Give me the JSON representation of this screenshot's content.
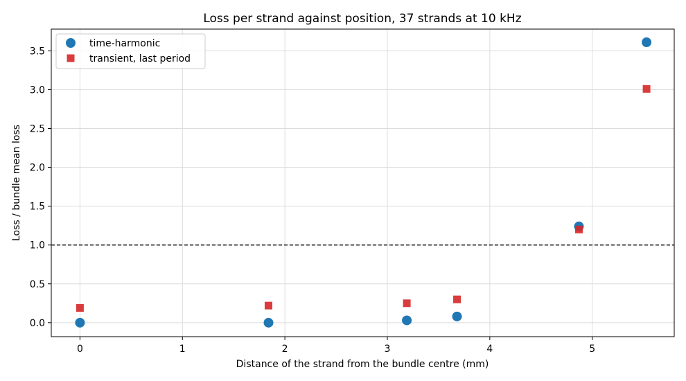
{
  "chart_data": {
    "type": "scatter",
    "title": "Loss per strand against position, 37 strands at 10 kHz",
    "xlabel": "Distance of the strand from the bundle centre (mm)",
    "ylabel": "Loss / bundle mean loss",
    "xlim": [
      -0.28,
      5.8
    ],
    "ylim": [
      -0.18,
      3.78
    ],
    "xticks": [
      0,
      1,
      2,
      3,
      4,
      5
    ],
    "yticks": [
      0.0,
      0.5,
      1.0,
      1.5,
      2.0,
      2.5,
      3.0,
      3.5
    ],
    "xtick_labels": [
      "0",
      "1",
      "2",
      "3",
      "4",
      "5"
    ],
    "ytick_labels": [
      "0.0",
      "0.5",
      "1.0",
      "1.5",
      "2.0",
      "2.5",
      "3.0",
      "3.5"
    ],
    "grid": true,
    "legend_position": "top-left",
    "reference_line": {
      "y": 1.0,
      "style": "dashed",
      "color": "#000000"
    },
    "series": [
      {
        "name": "time-harmonic",
        "marker": "circle",
        "color": "#1f77b4",
        "x": [
          0,
          1.84,
          3.19,
          3.68,
          4.87,
          5.53
        ],
        "y": [
          0.0,
          0.0,
          0.03,
          0.08,
          1.24,
          3.61
        ]
      },
      {
        "name": "transient, last period",
        "marker": "square",
        "color": "#d62728",
        "x": [
          0,
          1.84,
          3.19,
          3.68,
          4.87,
          5.53
        ],
        "y": [
          0.19,
          0.22,
          0.25,
          0.3,
          1.2,
          3.01
        ]
      }
    ]
  }
}
